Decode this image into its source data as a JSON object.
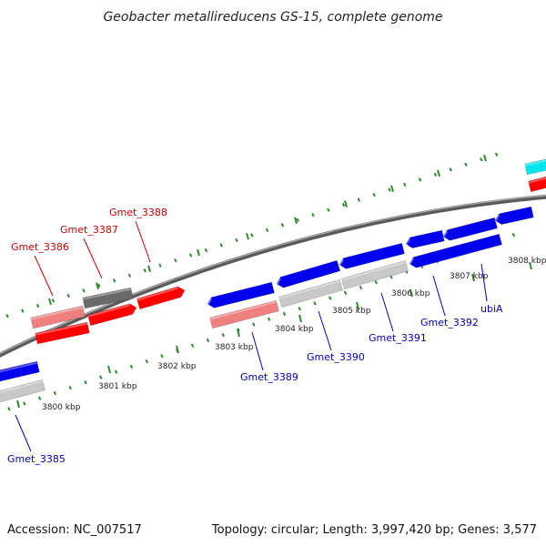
{
  "title": "Geobacter metallireducens GS-15, complete genome",
  "footer": {
    "accession": "Accession: NC_007517",
    "summary": "Topology: circular; Length: 3,997,420 bp; Genes: 3,577"
  },
  "colors": {
    "backbone": "#7a7a7a",
    "minor_tick": "#2e8b2e",
    "forward_label": "#cc0000",
    "reverse_label": "#0000bb",
    "red": "#ff0000",
    "salmon": "#f08080",
    "dark_gray": "#6a6a6a",
    "light_gray": "#c8c8c8",
    "blue": "#0000ee",
    "cyan": "#00e5ee"
  },
  "ticks": [
    {
      "label": "3800 kbp"
    },
    {
      "label": "3801 kbp"
    },
    {
      "label": "3802 kbp"
    },
    {
      "label": "3803 kbp"
    },
    {
      "label": "3804 kbp"
    },
    {
      "label": "3805 kbp"
    },
    {
      "label": "3806 kbp"
    },
    {
      "label": "3807 kbp"
    },
    {
      "label": "3808 kbp"
    }
  ],
  "labels": [
    {
      "name": "Gmet_3386",
      "strand": "forward"
    },
    {
      "name": "Gmet_3387",
      "strand": "forward"
    },
    {
      "name": "Gmet_3388",
      "strand": "forward"
    },
    {
      "name": "Gmet_3385",
      "strand": "reverse"
    },
    {
      "name": "Gmet_3389",
      "strand": "reverse"
    },
    {
      "name": "Gmet_3390",
      "strand": "reverse"
    },
    {
      "name": "Gmet_3391",
      "strand": "reverse"
    },
    {
      "name": "Gmet_3392",
      "strand": "reverse"
    },
    {
      "name": "ubiA",
      "strand": "reverse"
    }
  ]
}
